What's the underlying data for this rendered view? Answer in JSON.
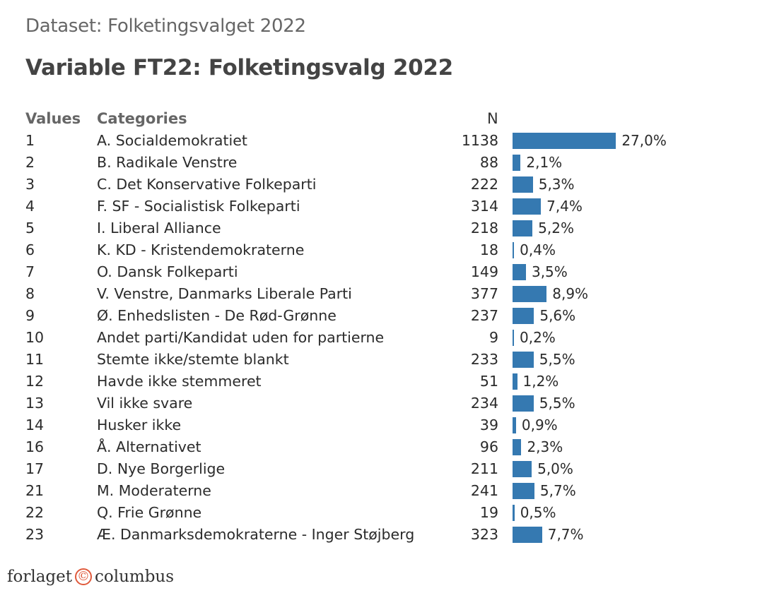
{
  "header": {
    "dataset": "Dataset: Folketingsvalget 2022",
    "title": "Variable FT22: Folketingsvalg 2022"
  },
  "columns": {
    "values": "Values",
    "categories": "Categories",
    "n": "N"
  },
  "bar_color": "#3579b1",
  "rows": [
    {
      "value": "1",
      "category": "A. Socialdemokratiet",
      "n": "1138",
      "pct": "27,0%",
      "p": 27.0
    },
    {
      "value": "2",
      "category": "B. Radikale Venstre",
      "n": "88",
      "pct": "2,1%",
      "p": 2.1
    },
    {
      "value": "3",
      "category": "C. Det Konservative Folkeparti",
      "n": "222",
      "pct": "5,3%",
      "p": 5.3
    },
    {
      "value": "4",
      "category": "F. SF - Socialistisk Folkeparti",
      "n": "314",
      "pct": "7,4%",
      "p": 7.4
    },
    {
      "value": "5",
      "category": "I. Liberal Alliance",
      "n": "218",
      "pct": "5,2%",
      "p": 5.2
    },
    {
      "value": "6",
      "category": "K. KD - Kristendemokraterne",
      "n": "18",
      "pct": "0,4%",
      "p": 0.4
    },
    {
      "value": "7",
      "category": "O. Dansk Folkeparti",
      "n": "149",
      "pct": "3,5%",
      "p": 3.5
    },
    {
      "value": "8",
      "category": "V. Venstre, Danmarks Liberale Parti",
      "n": "377",
      "pct": "8,9%",
      "p": 8.9
    },
    {
      "value": "9",
      "category": "Ø. Enhedslisten - De Rød-Grønne",
      "n": "237",
      "pct": "5,6%",
      "p": 5.6
    },
    {
      "value": "10",
      "category": "Andet parti/Kandidat uden for partierne",
      "n": "9",
      "pct": "0,2%",
      "p": 0.2
    },
    {
      "value": "11",
      "category": "Stemte ikke/stemte blankt",
      "n": "233",
      "pct": "5,5%",
      "p": 5.5
    },
    {
      "value": "12",
      "category": "Havde ikke stemmeret",
      "n": "51",
      "pct": "1,2%",
      "p": 1.2
    },
    {
      "value": "13",
      "category": "Vil ikke svare",
      "n": "234",
      "pct": "5,5%",
      "p": 5.5
    },
    {
      "value": "14",
      "category": "Husker ikke",
      "n": "39",
      "pct": "0,9%",
      "p": 0.9
    },
    {
      "value": "16",
      "category": "Å. Alternativet",
      "n": "96",
      "pct": "2,3%",
      "p": 2.3
    },
    {
      "value": "17",
      "category": "D. Nye Borgerlige",
      "n": "211",
      "pct": "5,0%",
      "p": 5.0
    },
    {
      "value": "21",
      "category": "M. Moderaterne",
      "n": "241",
      "pct": "5,7%",
      "p": 5.7
    },
    {
      "value": "22",
      "category": "Q. Frie Grønne",
      "n": "19",
      "pct": "0,5%",
      "p": 0.5
    },
    {
      "value": "23",
      "category": "Æ. Danmarksdemokraterne - Inger Støjberg",
      "n": "323",
      "pct": "7,7%",
      "p": 7.7
    }
  ],
  "footer": {
    "logo_left": "forlaget",
    "logo_symbol": "©",
    "logo_right": "columbus"
  },
  "chart_data": {
    "type": "bar",
    "orientation": "horizontal",
    "title": "Variable FT22: Folketingsvalg 2022",
    "subtitle": "Dataset: Folketingsvalget 2022",
    "categories": [
      "A. Socialdemokratiet",
      "B. Radikale Venstre",
      "C. Det Konservative Folkeparti",
      "F. SF - Socialistisk Folkeparti",
      "I. Liberal Alliance",
      "K. KD - Kristendemokraterne",
      "O. Dansk Folkeparti",
      "V. Venstre, Danmarks Liberale Parti",
      "Ø. Enhedslisten - De Rød-Grønne",
      "Andet parti/Kandidat uden for partierne",
      "Stemte ikke/stemte blankt",
      "Havde ikke stemmeret",
      "Vil ikke svare",
      "Husker ikke",
      "Å. Alternativet",
      "D. Nye Borgerlige",
      "M. Moderaterne",
      "Q. Frie Grønne",
      "Æ. Danmarksdemokraterne - Inger Støjberg"
    ],
    "value_codes": [
      1,
      2,
      3,
      4,
      5,
      6,
      7,
      8,
      9,
      10,
      11,
      12,
      13,
      14,
      16,
      17,
      21,
      22,
      23
    ],
    "series": [
      {
        "name": "N",
        "values": [
          1138,
          88,
          222,
          314,
          218,
          18,
          149,
          377,
          237,
          9,
          233,
          51,
          234,
          39,
          96,
          211,
          241,
          19,
          323
        ]
      },
      {
        "name": "Percent",
        "values": [
          27.0,
          2.1,
          5.3,
          7.4,
          5.2,
          0.4,
          3.5,
          8.9,
          5.6,
          0.2,
          5.5,
          1.2,
          5.5,
          0.9,
          2.3,
          5.0,
          5.7,
          0.5,
          7.7
        ]
      }
    ],
    "xlabel": "",
    "ylabel": "",
    "grid": false,
    "legend": "none"
  }
}
